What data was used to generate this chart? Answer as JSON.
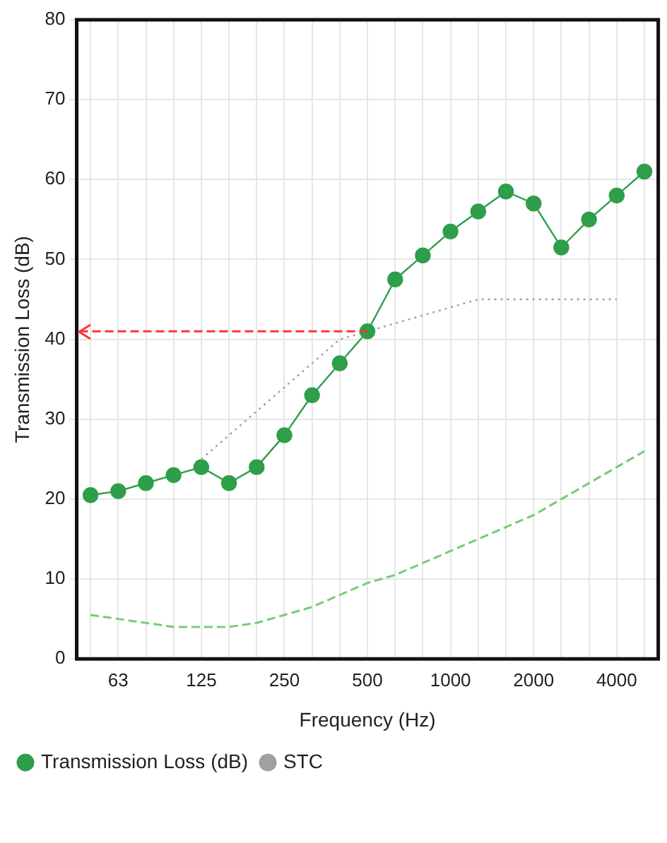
{
  "chart_data": {
    "type": "line",
    "xlabel": "Frequency (Hz)",
    "ylabel": "Transmission Loss (dB)",
    "categories": [
      null,
      "63",
      null,
      null,
      "125",
      null,
      null,
      "250",
      null,
      null,
      "500",
      null,
      null,
      "1000",
      null,
      null,
      "2000",
      null,
      null,
      "4000",
      null
    ],
    "series": [
      {
        "name": "Transmission Loss (dB)",
        "color": "#2e9e4a",
        "marker": "circle",
        "line_style": "solid",
        "values": [
          20.5,
          21,
          22,
          23,
          24,
          22,
          24,
          28,
          33,
          37,
          41,
          47.5,
          50.5,
          53.5,
          56,
          58.5,
          57,
          51.5,
          55,
          58,
          61
        ]
      },
      {
        "name": "STC",
        "color": "#a0a0a0",
        "marker": "none",
        "line_style": "dotted",
        "values": [
          null,
          null,
          null,
          null,
          25,
          28,
          31,
          34,
          37,
          40,
          41,
          42,
          43,
          44,
          45,
          45,
          45,
          45,
          45,
          45,
          null
        ]
      },
      {
        "color": "#77cc77",
        "marker": "none",
        "line_style": "dashed",
        "values": [
          5.5,
          5,
          4.5,
          4,
          4,
          4,
          4.5,
          5.5,
          6.5,
          8,
          9.5,
          10.5,
          12,
          13.5,
          15,
          16.5,
          18,
          20,
          22,
          24,
          26
        ]
      }
    ],
    "ylim": [
      0,
      80
    ],
    "yticks": [
      0,
      10,
      20,
      30,
      40,
      50,
      60,
      70,
      80
    ],
    "grid": true,
    "legend": "bottom",
    "ref_lines": [
      {
        "axis": "y",
        "value": 41,
        "color": "#ff3333",
        "line_style": "dashed"
      }
    ]
  }
}
